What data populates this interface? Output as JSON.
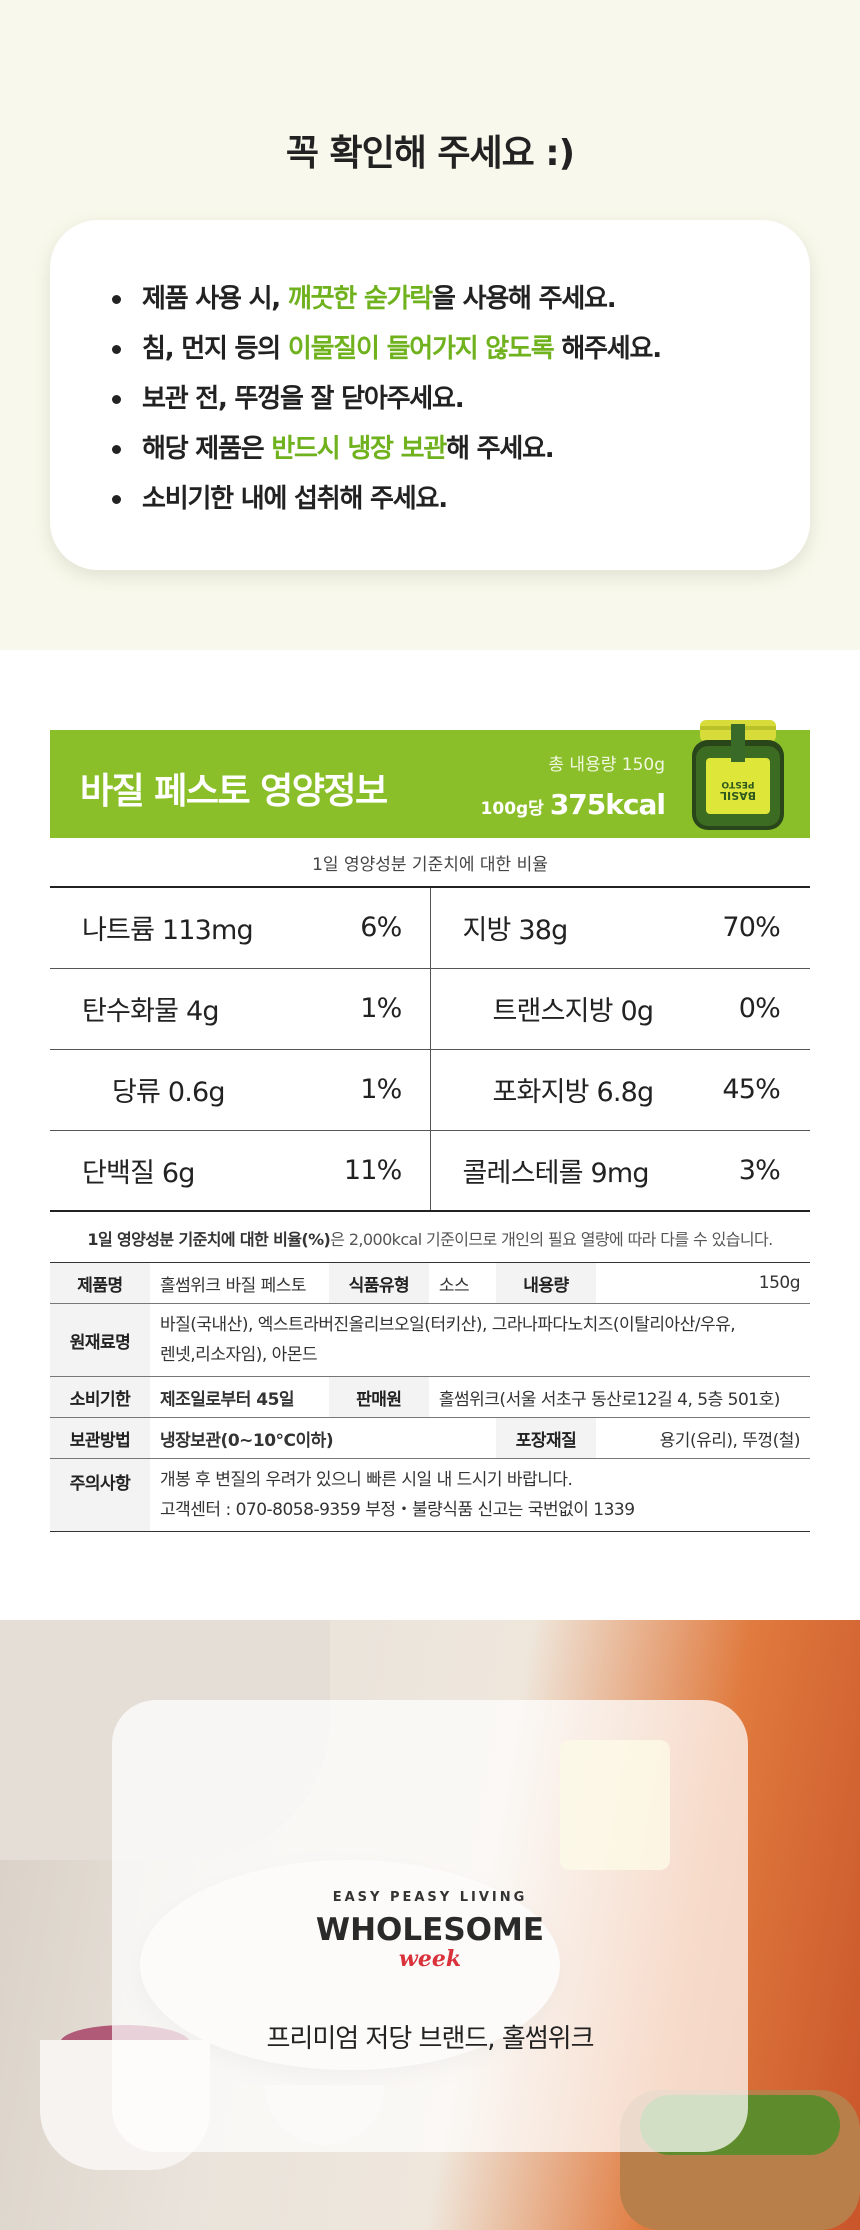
{
  "notice": {
    "title": "꼭 확인해 주세요 :)",
    "items": [
      {
        "pre": "제품 사용 시, ",
        "highlight": "깨끗한 숟가락",
        "post": "을 사용해 주세요."
      },
      {
        "pre": "침, 먼지 등의 ",
        "highlight": "이물질이 들어가지 않도록",
        "post": " 해주세요."
      },
      {
        "pre": "보관 전, 뚜껑을 잘 닫아주세요.",
        "highlight": "",
        "post": ""
      },
      {
        "pre": "해당 제품은 ",
        "highlight": "반드시 냉장 보관",
        "post": "해 주세요."
      },
      {
        "pre": "소비기한 내에 섭취해 주세요.",
        "highlight": "",
        "post": ""
      }
    ],
    "highlight_color": "#6fb21d"
  },
  "nutrition": {
    "title": "바질 페스토 영양정보",
    "total": "총 내용량 150g",
    "per": "100g당",
    "kcal": "375kcal",
    "jar_label": "PESTO BASIL",
    "ref_line": "1일 영양성분 기준치에 대한 비율",
    "rows": [
      {
        "left": "나트륨 113mg",
        "left_pct": "6%",
        "right": "지방 38g",
        "right_pct": "70%"
      },
      {
        "left": "탄수화물 4g",
        "left_pct": "1%",
        "right": "트랜스지방 0g",
        "right_pct": "0%"
      },
      {
        "left": "당류 0.6g",
        "left_pct": "1%",
        "right": "포화지방 6.8g",
        "right_pct": "45%"
      },
      {
        "left": "단백질 6g",
        "left_pct": "11%",
        "right": "콜레스테롤 9mg",
        "right_pct": "3%"
      }
    ],
    "footnote_bold": "1일 영양성분 기준치에 대한 비율(%)",
    "footnote_rest": "은 2,000kcal 기준이므로 개인의 필요 열량에 따라 다를 수 있습니다.",
    "header_color": "#8bbf2a"
  },
  "product_info": {
    "name_label": "제품명",
    "name": "홀썸위크 바질 페스토",
    "type_label": "식품유형",
    "type": "소스",
    "volume_label": "내용량",
    "volume": "150g",
    "ingredients_label": "원재료명",
    "ingredients_line1": "바질(국내산), 엑스트라버진올리브오일(터키산), 그라나파다노치즈(이탈리아산/우유,",
    "ingredients_line2": "렌넷,리소자임), 아몬드",
    "expiry_label": "소비기한",
    "expiry": "제조일로부터 45일",
    "seller_label": "판매원",
    "seller": "홀썸위크(서울 서초구 동산로12길 4, 5층 501호)",
    "storage_label": "보관방법",
    "storage": "냉장보관(0~10°C이하)",
    "package_label": "포장재질",
    "package": "용기(유리), 뚜껑(철)",
    "caution_label": "주의사항",
    "caution_line1": "개봉 후 변질의 우려가 있으니 빠른 시일 내 드시기 바랍니다.",
    "caution_line2": "고객센터 : 070-8058-9359   부정・불량식품 신고는 국번없이 1339"
  },
  "brand": {
    "logo_top": "EASY PEASY LIVING",
    "logo_main": "WHOLESOME",
    "logo_week": "week",
    "slogan": "프리미엄 저당 브랜드, 홀썸위크",
    "logo_accent_color": "#d9323b"
  }
}
